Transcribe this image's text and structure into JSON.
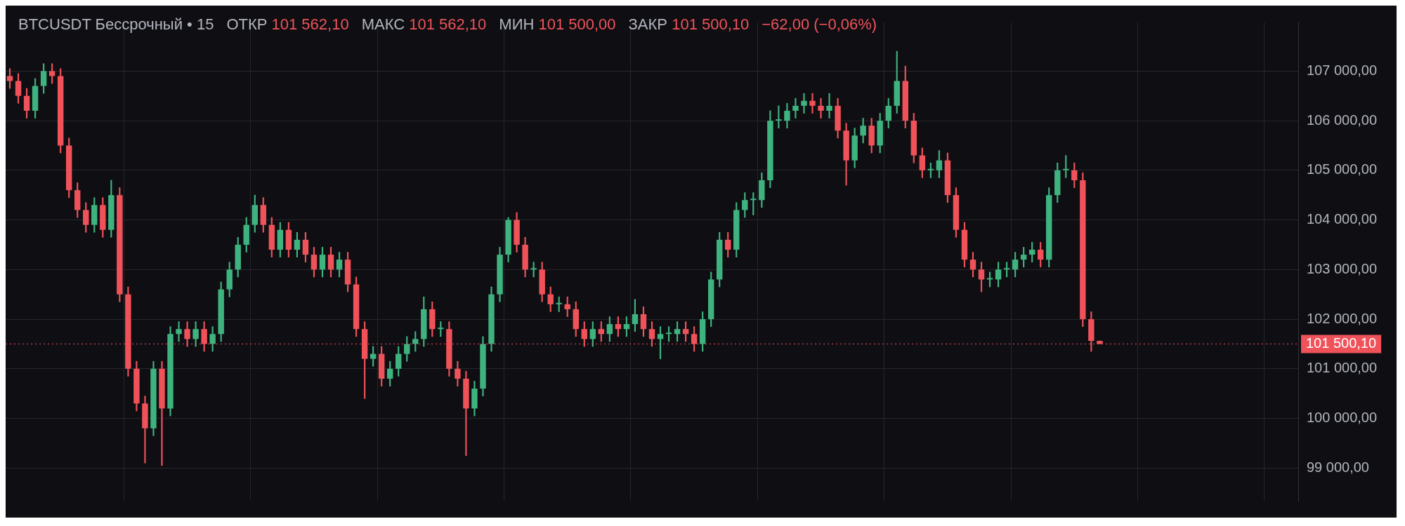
{
  "chart_data": {
    "type": "candlestick",
    "title": "BTCUSDT Бессрочный • 15",
    "annotations": [
      "ОТКР 101 562,10",
      "МАКС 101 562,10",
      "МИН 101 500,00",
      "ЗАКР 101 500,10",
      "−62,00 (−0,06%)"
    ],
    "categories": [
      null,
      null,
      null,
      null,
      null,
      null,
      null,
      null,
      null,
      null,
      null,
      null,
      null,
      null,
      null,
      null,
      null,
      null,
      null,
      null,
      null,
      null,
      null,
      null,
      null,
      null,
      null,
      null,
      null,
      null,
      null,
      null,
      null,
      null,
      null,
      null,
      null,
      null,
      null,
      null,
      null,
      null,
      null,
      null,
      null,
      null,
      null,
      null,
      null,
      null,
      null,
      null,
      null,
      null,
      null,
      null,
      null,
      null,
      null,
      null,
      null,
      null,
      null,
      null,
      null,
      null,
      null,
      null,
      null,
      null,
      null,
      null,
      null,
      null,
      null,
      null,
      null,
      null,
      null,
      null,
      null,
      null,
      null,
      null,
      null,
      null,
      null,
      null,
      null,
      null,
      null,
      null,
      null,
      null,
      null,
      null,
      null,
      null,
      null,
      null,
      null,
      null,
      null,
      null,
      null,
      null,
      null,
      null,
      null,
      null,
      null,
      null,
      null,
      null,
      null,
      null,
      null,
      null,
      null,
      null,
      null,
      null,
      null,
      null,
      null,
      null,
      null,
      null,
      null,
      null,
      null,
      null,
      null,
      null,
      null,
      null,
      null,
      null,
      null,
      null,
      null,
      null,
      null,
      null,
      null,
      null,
      null,
      null,
      null,
      null,
      null,
      null,
      null
    ],
    "ohlc": [
      [
        106900,
        107050,
        106650,
        106800
      ],
      [
        106800,
        106950,
        106350,
        106500
      ],
      [
        106500,
        106650,
        106050,
        106200
      ],
      [
        106200,
        106850,
        106050,
        106700
      ],
      [
        106700,
        107150,
        106550,
        107000
      ],
      [
        107000,
        107150,
        106750,
        106900
      ],
      [
        106900,
        107050,
        105350,
        105500
      ],
      [
        105500,
        105650,
        104450,
        104600
      ],
      [
        104600,
        104750,
        104050,
        104200
      ],
      [
        104200,
        104350,
        103750,
        103900
      ],
      [
        103900,
        104450,
        103750,
        104300
      ],
      [
        104300,
        104450,
        103650,
        103800
      ],
      [
        103800,
        104800,
        103650,
        104500
      ],
      [
        104500,
        104650,
        102350,
        102500
      ],
      [
        102500,
        102650,
        100850,
        101000
      ],
      [
        101000,
        101150,
        100150,
        100300
      ],
      [
        100300,
        100450,
        99100,
        99800
      ],
      [
        99800,
        101150,
        99650,
        101000
      ],
      [
        101000,
        101150,
        99050,
        100200
      ],
      [
        100200,
        101850,
        100050,
        101700
      ],
      [
        101700,
        101950,
        101550,
        101800
      ],
      [
        101800,
        101950,
        101450,
        101600
      ],
      [
        101600,
        101950,
        101450,
        101800
      ],
      [
        101800,
        101950,
        101350,
        101500
      ],
      [
        101500,
        101850,
        101350,
        101700
      ],
      [
        101700,
        102750,
        101550,
        102600
      ],
      [
        102600,
        103150,
        102450,
        103000
      ],
      [
        103000,
        103650,
        102850,
        103500
      ],
      [
        103500,
        104050,
        103350,
        103900
      ],
      [
        103900,
        104500,
        103750,
        104300
      ],
      [
        104300,
        104450,
        103750,
        103900
      ],
      [
        103900,
        104050,
        103250,
        103400
      ],
      [
        103400,
        103950,
        103250,
        103800
      ],
      [
        103800,
        103950,
        103250,
        103400
      ],
      [
        103400,
        103750,
        103250,
        103600
      ],
      [
        103600,
        103750,
        103150,
        103300
      ],
      [
        103300,
        103450,
        102850,
        103000
      ],
      [
        103000,
        103450,
        102850,
        103300
      ],
      [
        103300,
        103450,
        102850,
        103000
      ],
      [
        103000,
        103350,
        102850,
        103200
      ],
      [
        103200,
        103350,
        102550,
        102700
      ],
      [
        102700,
        102850,
        101650,
        101800
      ],
      [
        101800,
        101950,
        100400,
        101200
      ],
      [
        101200,
        101450,
        101050,
        101300
      ],
      [
        101300,
        101450,
        100650,
        100800
      ],
      [
        100800,
        101150,
        100650,
        101000
      ],
      [
        101000,
        101450,
        100850,
        101300
      ],
      [
        101300,
        101650,
        101150,
        101500
      ],
      [
        101500,
        101750,
        101350,
        101600
      ],
      [
        101600,
        102450,
        101450,
        102200
      ],
      [
        102200,
        102350,
        101650,
        101800
      ],
      [
        101800,
        101950,
        101650,
        101800
      ],
      [
        101800,
        101950,
        100850,
        101000
      ],
      [
        101000,
        101150,
        100650,
        100800
      ],
      [
        100800,
        100950,
        99250,
        100200
      ],
      [
        100200,
        100750,
        100050,
        100600
      ],
      [
        100600,
        101650,
        100450,
        101500
      ],
      [
        101500,
        102650,
        101350,
        102500
      ],
      [
        102500,
        103450,
        102350,
        103300
      ],
      [
        103300,
        104050,
        103150,
        104000
      ],
      [
        104000,
        104150,
        103350,
        103500
      ],
      [
        103500,
        103650,
        102850,
        103000
      ],
      [
        103000,
        103150,
        102850,
        103000
      ],
      [
        103000,
        103150,
        102350,
        102500
      ],
      [
        102500,
        102650,
        102150,
        102300
      ],
      [
        102300,
        102450,
        102150,
        102300
      ],
      [
        102300,
        102450,
        102050,
        102200
      ],
      [
        102200,
        102350,
        101650,
        101800
      ],
      [
        101800,
        101950,
        101450,
        101600
      ],
      [
        101600,
        101950,
        101450,
        101800
      ],
      [
        101800,
        101950,
        101550,
        101700
      ],
      [
        101700,
        102050,
        101550,
        101900
      ],
      [
        101900,
        102050,
        101650,
        101800
      ],
      [
        101800,
        102050,
        101650,
        101900
      ],
      [
        101900,
        102400,
        101750,
        102100
      ],
      [
        102100,
        102250,
        101650,
        101800
      ],
      [
        101800,
        101950,
        101450,
        101600
      ],
      [
        101600,
        101850,
        101200,
        101700
      ],
      [
        101700,
        101850,
        101550,
        101700
      ],
      [
        101700,
        101950,
        101550,
        101800
      ],
      [
        101800,
        101950,
        101550,
        101700
      ],
      [
        101700,
        101850,
        101350,
        101500
      ],
      [
        101500,
        102150,
        101350,
        102000
      ],
      [
        102000,
        102950,
        101850,
        102800
      ],
      [
        102800,
        103750,
        102650,
        103600
      ],
      [
        103600,
        103750,
        103250,
        103400
      ],
      [
        103400,
        104350,
        103250,
        104200
      ],
      [
        104200,
        104550,
        104050,
        104400
      ],
      [
        104400,
        104550,
        104100,
        104400
      ],
      [
        104400,
        104950,
        104250,
        104800
      ],
      [
        104800,
        106200,
        104650,
        106000
      ],
      [
        106000,
        106300,
        105850,
        106000
      ],
      [
        106000,
        106350,
        105850,
        106200
      ],
      [
        106200,
        106450,
        106050,
        106300
      ],
      [
        106300,
        106550,
        106150,
        106400
      ],
      [
        106400,
        106550,
        106150,
        106300
      ],
      [
        106300,
        106450,
        106050,
        106200
      ],
      [
        106200,
        106550,
        106050,
        106300
      ],
      [
        106300,
        106450,
        105650,
        105800
      ],
      [
        105800,
        105950,
        104700,
        105200
      ],
      [
        105200,
        105850,
        105050,
        105700
      ],
      [
        105700,
        106050,
        105550,
        105900
      ],
      [
        105900,
        106050,
        105350,
        105500
      ],
      [
        105500,
        106150,
        105350,
        106000
      ],
      [
        106000,
        106450,
        105850,
        106300
      ],
      [
        106300,
        107400,
        106150,
        106800
      ],
      [
        106800,
        107100,
        105850,
        106000
      ],
      [
        106000,
        106150,
        105150,
        105300
      ],
      [
        105300,
        105450,
        104850,
        105000
      ],
      [
        105000,
        105150,
        104850,
        105000
      ],
      [
        105000,
        105400,
        104850,
        105200
      ],
      [
        105200,
        105350,
        104350,
        104500
      ],
      [
        104500,
        104650,
        103650,
        103800
      ],
      [
        103800,
        103950,
        103050,
        103200
      ],
      [
        103200,
        103350,
        102850,
        103000
      ],
      [
        103000,
        103150,
        102550,
        102800
      ],
      [
        102800,
        102950,
        102650,
        102800
      ],
      [
        102800,
        103150,
        102650,
        103000
      ],
      [
        103000,
        103150,
        102850,
        103000
      ],
      [
        103000,
        103350,
        102850,
        103200
      ],
      [
        103200,
        103450,
        103050,
        103300
      ],
      [
        103300,
        103550,
        103150,
        103400
      ],
      [
        103400,
        103550,
        103050,
        103200
      ],
      [
        103200,
        104650,
        103050,
        104500
      ],
      [
        104500,
        105150,
        104350,
        105000
      ],
      [
        105000,
        105300,
        104850,
        105000
      ],
      [
        105000,
        105150,
        104650,
        104800
      ],
      [
        104800,
        104950,
        101850,
        102000
      ],
      [
        102000,
        102150,
        101350,
        101562.1
      ],
      [
        101562.1,
        101562.1,
        101500,
        101500.1
      ],
      null,
      null,
      null,
      null,
      null,
      null,
      null,
      null,
      null,
      null,
      null,
      null,
      null,
      null,
      null,
      null,
      null,
      null,
      null,
      null,
      null,
      null,
      null
    ],
    "ylim": [
      98340,
      107980
    ],
    "yticks": [
      {
        "value": 99000,
        "label": "99 000,00"
      },
      {
        "value": 100000,
        "label": "100 000,00"
      },
      {
        "value": 101000,
        "label": "101 000,00"
      },
      {
        "value": 102000,
        "label": "102 000,00"
      },
      {
        "value": 103000,
        "label": "103 000,00"
      },
      {
        "value": 104000,
        "label": "104 000,00"
      },
      {
        "value": 105000,
        "label": "105 000,00"
      },
      {
        "value": 106000,
        "label": "106 000,00"
      },
      {
        "value": 107000,
        "label": "107 000,00"
      }
    ],
    "ref_lines": [
      {
        "axis": "y",
        "value": 101500.1,
        "label": "101 500,10",
        "color": "#f0525a",
        "line_style": "dotted"
      }
    ],
    "grid": true
  }
}
